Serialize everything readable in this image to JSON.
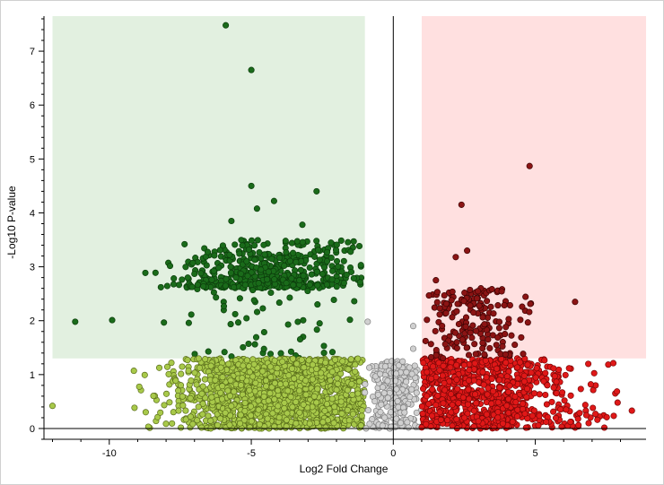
{
  "chart_data": {
    "type": "scatter",
    "title": "",
    "xlabel": "Log2 Fold Change",
    "ylabel": "-Log10 P-value",
    "xlim": [
      -12.3,
      8.9
    ],
    "ylim": [
      -0.2,
      7.65
    ],
    "x_ticks": [
      -10,
      -5,
      0,
      5
    ],
    "y_ticks": [
      0,
      1,
      2,
      3,
      4,
      5,
      6,
      7
    ],
    "grid": false,
    "legend": "none",
    "thresholds": {
      "log2fc_down": -1.0,
      "log2fc_up": 1.0,
      "neg_log10_p": 1.3
    },
    "regions": [
      {
        "name": "down-regulated",
        "x": [
          -12.0,
          -1.0
        ],
        "y": [
          1.3,
          7.65
        ],
        "color": "#e2f0e0"
      },
      {
        "name": "up-regulated",
        "x": [
          1.0,
          8.9
        ],
        "y": [
          1.3,
          7.65
        ],
        "color": "#ffe0e0"
      }
    ],
    "groups": [
      {
        "name": "significant-down",
        "color": "#1a6b1a",
        "stroke": "#0c3d0c"
      },
      {
        "name": "down-not-significant",
        "color": "#a8c94a",
        "stroke": "#5a6e1c"
      },
      {
        "name": "neutral",
        "color": "#d0d0d0",
        "stroke": "#808080"
      },
      {
        "name": "up-not-significant",
        "color": "#e01818",
        "stroke": "#7a0808"
      },
      {
        "name": "significant-up",
        "color": "#8b1414",
        "stroke": "#3d0404"
      }
    ],
    "highlight_points": [
      {
        "x": -5.9,
        "y": 7.48,
        "group": "significant-down"
      },
      {
        "x": -5.0,
        "y": 6.65,
        "group": "significant-down"
      },
      {
        "x": -5.0,
        "y": 4.5,
        "group": "significant-down"
      },
      {
        "x": -2.7,
        "y": 4.4,
        "group": "significant-down"
      },
      {
        "x": -4.2,
        "y": 4.22,
        "group": "significant-down"
      },
      {
        "x": -4.8,
        "y": 4.08,
        "group": "significant-down"
      },
      {
        "x": -3.2,
        "y": 3.78,
        "group": "significant-down"
      },
      {
        "x": -5.7,
        "y": 3.85,
        "group": "significant-down"
      },
      {
        "x": -1.5,
        "y": 3.28,
        "group": "significant-down"
      },
      {
        "x": -11.2,
        "y": 1.98,
        "group": "significant-down"
      },
      {
        "x": -9.9,
        "y": 2.01,
        "group": "significant-down"
      },
      {
        "x": -12.0,
        "y": 0.42,
        "group": "down-not-significant"
      },
      {
        "x": -0.9,
        "y": 1.98,
        "group": "neutral"
      },
      {
        "x": 0.7,
        "y": 1.9,
        "group": "neutral"
      },
      {
        "x": 0.7,
        "y": 1.48,
        "group": "neutral"
      },
      {
        "x": 4.8,
        "y": 4.87,
        "group": "significant-up"
      },
      {
        "x": 2.4,
        "y": 4.15,
        "group": "significant-up"
      },
      {
        "x": 2.6,
        "y": 3.3,
        "group": "significant-up"
      },
      {
        "x": 2.2,
        "y": 3.18,
        "group": "significant-up"
      },
      {
        "x": 6.4,
        "y": 2.35,
        "group": "significant-up"
      },
      {
        "x": 1.5,
        "y": 2.75,
        "group": "significant-up"
      },
      {
        "x": 8.4,
        "y": 0.33,
        "group": "up-not-significant"
      },
      {
        "x": 7.9,
        "y": 0.48,
        "group": "up-not-significant"
      }
    ],
    "cloud": [
      {
        "group": "significant-down",
        "count": 560,
        "x_range": [
          -8.8,
          -1.1
        ],
        "y_range": [
          1.3,
          3.5
        ],
        "x_peak": -4.2,
        "y_decay": 0.55
      },
      {
        "group": "down-not-significant",
        "count": 1700,
        "x_range": [
          -9.2,
          -1.0
        ],
        "y_range": [
          0.0,
          1.3
        ],
        "x_peak": -3.8,
        "y_decay": 0
      },
      {
        "group": "neutral",
        "count": 260,
        "x_range": [
          -1.0,
          1.0
        ],
        "y_range": [
          0.0,
          1.25
        ],
        "x_peak": 0,
        "y_decay": 0
      },
      {
        "group": "up-not-significant",
        "count": 900,
        "x_range": [
          1.0,
          8.0
        ],
        "y_range": [
          0.0,
          1.3
        ],
        "x_peak": 2.8,
        "y_decay": 0
      },
      {
        "group": "significant-up",
        "count": 180,
        "x_range": [
          1.0,
          5.1
        ],
        "y_range": [
          1.3,
          2.6
        ],
        "x_peak": 2.8,
        "y_decay": 0.45
      }
    ]
  }
}
